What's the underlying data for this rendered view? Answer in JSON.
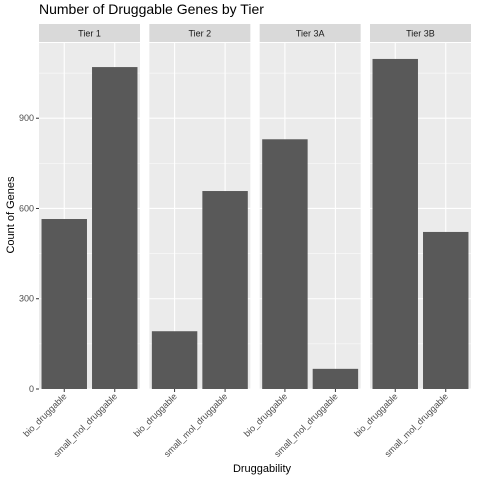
{
  "chart_data": {
    "type": "bar",
    "title": "Number of Druggable Genes by Tier",
    "xlabel": "Druggability",
    "ylabel": "Count of Genes",
    "categories": [
      "bio_druggable",
      "small_mol_druggable"
    ],
    "ylim": [
      0,
      1150
    ],
    "yticks": [
      0,
      300,
      600,
      900
    ],
    "grid": true,
    "facets": [
      {
        "name": "Tier 1",
        "values": [
          565,
          1070
        ]
      },
      {
        "name": "Tier 2",
        "values": [
          192,
          658
        ]
      },
      {
        "name": "Tier 3A",
        "values": [
          830,
          67
        ]
      },
      {
        "name": "Tier 3B",
        "values": [
          1097,
          522
        ]
      }
    ],
    "colors": {
      "bar": "#595959",
      "panel": "#ebebeb",
      "strip": "#d9d9d9",
      "grid": "#ffffff"
    }
  }
}
